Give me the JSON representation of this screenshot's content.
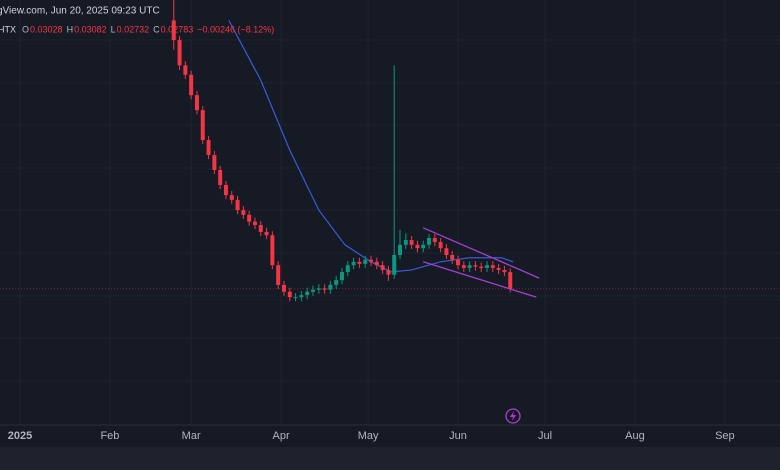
{
  "header": {
    "source": "gView.com, Jun 20, 2025 09:23 UTC",
    "symbol": "HTX",
    "ohlc": [
      {
        "key": "O",
        "value": "0.03028"
      },
      {
        "key": "H",
        "value": "0.03082"
      },
      {
        "key": "L",
        "value": "0.02732"
      },
      {
        "key": "C",
        "value": "0.02783"
      }
    ],
    "change": "−0.00246 (−8.12%)"
  },
  "chart_data": {
    "type": "candlestick",
    "up_color": "#089981",
    "down_color": "#f23645",
    "xlim": [
      -6.9,
      262
    ],
    "ylim": [
      0.0078,
      0.0703
    ],
    "xticks": [
      {
        "value": 0,
        "label": "2025"
      },
      {
        "value": 31,
        "label": "Feb"
      },
      {
        "value": 59,
        "label": "Mar"
      },
      {
        "value": 90,
        "label": "Apr"
      },
      {
        "value": 120,
        "label": "May"
      },
      {
        "value": 151,
        "label": "Jun"
      },
      {
        "value": 181,
        "label": "Jul"
      },
      {
        "value": 212,
        "label": "Aug"
      },
      {
        "value": 243,
        "label": "Sep"
      }
    ],
    "grid": true,
    "x": [
      53,
      55,
      57,
      59,
      61,
      63,
      65,
      67,
      69,
      71,
      73,
      75,
      77,
      79,
      81,
      83,
      85,
      87,
      89,
      91,
      93,
      95,
      97,
      99,
      101,
      103,
      105,
      107,
      109,
      111,
      113,
      115,
      117,
      119,
      121,
      123,
      125,
      127,
      129,
      131,
      133,
      135,
      137,
      139,
      141,
      143,
      145,
      147,
      149,
      151,
      153,
      155,
      157,
      159,
      161,
      163,
      165,
      167,
      169
    ],
    "open": [
      0.0673,
      0.0644,
      0.0607,
      0.0593,
      0.0563,
      0.0541,
      0.0497,
      0.0475,
      0.0453,
      0.0431,
      0.0416,
      0.0409,
      0.0394,
      0.0387,
      0.0377,
      0.0372,
      0.0362,
      0.0357,
      0.0313,
      0.0284,
      0.0274,
      0.0266,
      0.0266,
      0.0269,
      0.0274,
      0.0277,
      0.0279,
      0.0277,
      0.0284,
      0.0291,
      0.0303,
      0.0313,
      0.0318,
      0.0315,
      0.0321,
      0.0318,
      0.0313,
      0.0306,
      0.0299,
      0.0328,
      0.0343,
      0.035,
      0.0343,
      0.0338,
      0.0343,
      0.0353,
      0.0347,
      0.0338,
      0.0328,
      0.0321,
      0.0313,
      0.0309,
      0.0313,
      0.0311,
      0.0309,
      0.0313,
      0.0309,
      0.0306,
      0.03028
    ],
    "high": [
      0.072,
      0.065,
      0.0613,
      0.0599,
      0.0569,
      0.0547,
      0.0503,
      0.0481,
      0.0459,
      0.0437,
      0.0422,
      0.0415,
      0.04,
      0.0393,
      0.0383,
      0.0378,
      0.0368,
      0.0363,
      0.0319,
      0.029,
      0.028,
      0.0272,
      0.0275,
      0.028,
      0.0283,
      0.0285,
      0.0285,
      0.029,
      0.0297,
      0.0309,
      0.0319,
      0.0324,
      0.0324,
      0.0327,
      0.0327,
      0.0324,
      0.0319,
      0.0312,
      0.0607,
      0.0365,
      0.036,
      0.0356,
      0.0349,
      0.0349,
      0.0359,
      0.0359,
      0.0353,
      0.0344,
      0.0334,
      0.0327,
      0.0319,
      0.0319,
      0.0319,
      0.0317,
      0.0319,
      0.0319,
      0.0315,
      0.0312,
      0.03082
    ],
    "low": [
      0.063,
      0.06,
      0.0587,
      0.0557,
      0.0535,
      0.0491,
      0.0469,
      0.0447,
      0.0425,
      0.041,
      0.0403,
      0.0388,
      0.0381,
      0.0371,
      0.0366,
      0.0356,
      0.0351,
      0.0307,
      0.0278,
      0.0268,
      0.026,
      0.026,
      0.026,
      0.0263,
      0.0268,
      0.0271,
      0.0271,
      0.0271,
      0.0278,
      0.0285,
      0.0297,
      0.0307,
      0.0309,
      0.0309,
      0.0312,
      0.0307,
      0.03,
      0.029,
      0.0293,
      0.0322,
      0.0337,
      0.0337,
      0.0332,
      0.0332,
      0.0337,
      0.0341,
      0.0332,
      0.0322,
      0.0315,
      0.0307,
      0.0303,
      0.0303,
      0.0305,
      0.0303,
      0.0303,
      0.0303,
      0.03,
      0.0297,
      0.02732
    ],
    "close": [
      0.0644,
      0.0607,
      0.0593,
      0.0563,
      0.0541,
      0.0497,
      0.0475,
      0.0453,
      0.0431,
      0.0416,
      0.0409,
      0.0394,
      0.0387,
      0.0377,
      0.0372,
      0.0362,
      0.0357,
      0.0313,
      0.0284,
      0.0274,
      0.0266,
      0.0266,
      0.0269,
      0.0274,
      0.0277,
      0.0279,
      0.0277,
      0.0284,
      0.0291,
      0.0303,
      0.0313,
      0.0318,
      0.0315,
      0.0321,
      0.0318,
      0.0313,
      0.0306,
      0.0299,
      0.0328,
      0.0343,
      0.035,
      0.0343,
      0.0338,
      0.0343,
      0.0353,
      0.0347,
      0.0338,
      0.0328,
      0.0321,
      0.0313,
      0.0309,
      0.0313,
      0.0311,
      0.0309,
      0.0313,
      0.0309,
      0.0306,
      0.03028,
      0.02783
    ],
    "moving_average": {
      "color": "#3a5bd9",
      "x": [
        72,
        83,
        93,
        103,
        112,
        121,
        128,
        135,
        145,
        155,
        166,
        170
      ],
      "values": [
        0.0673,
        0.0585,
        0.0482,
        0.0394,
        0.0343,
        0.0318,
        0.0303,
        0.0306,
        0.0318,
        0.0324,
        0.0324,
        0.0318
      ]
    },
    "trendlines": [
      {
        "color": "#a63fd1",
        "x": [
          139,
          179
        ],
        "values": [
          0.0368,
          0.0294
        ]
      },
      {
        "color": "#a63fd1",
        "x": [
          139,
          178
        ],
        "values": [
          0.0318,
          0.0266
        ]
      }
    ]
  }
}
